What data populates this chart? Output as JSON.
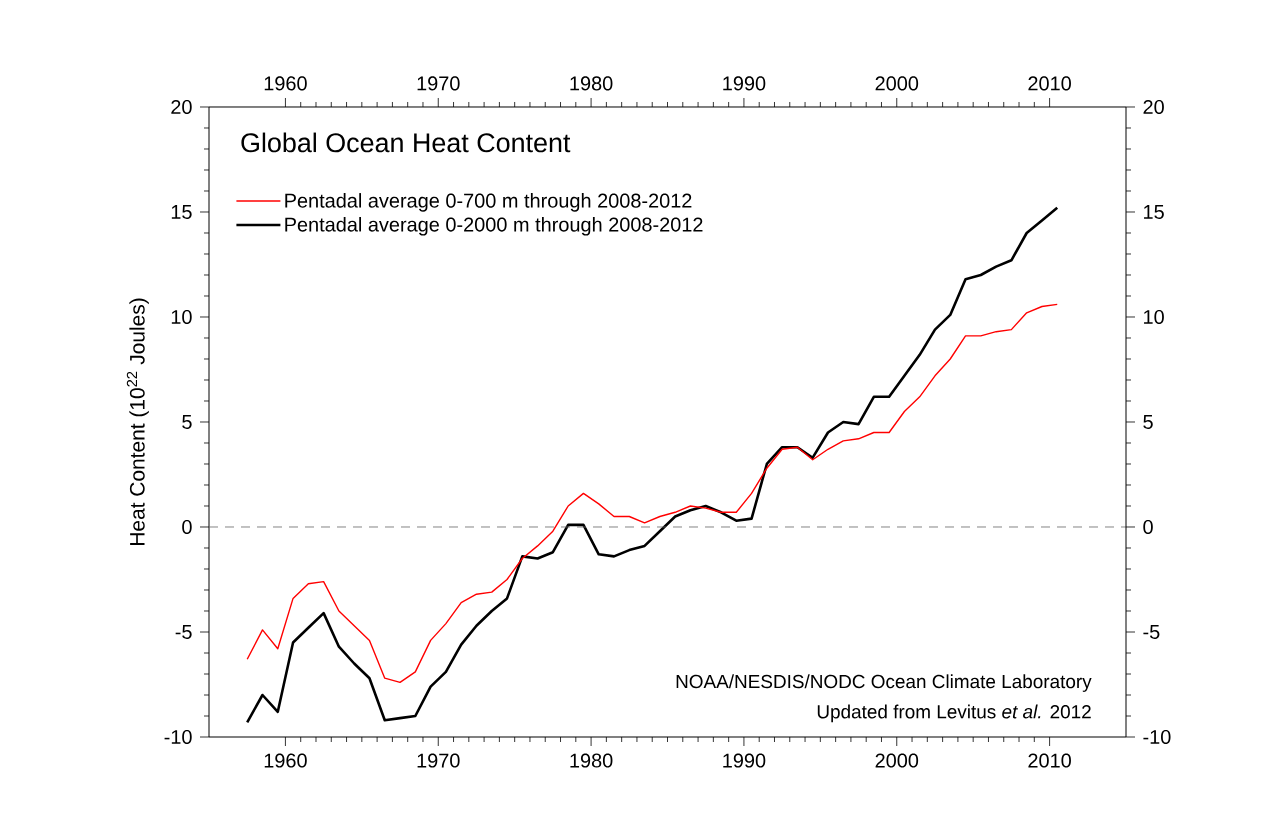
{
  "chart_data": {
    "type": "line",
    "title": "Global Ocean Heat Content",
    "ylabel": "Heat Content (10$^{22}$ Joules)",
    "annotations": [
      "NOAA/NESDIS/NODC Ocean Climate Laboratory",
      "Updated from Levitus *et al.* 2012"
    ],
    "x": [
      1957.5,
      1958.5,
      1959.5,
      1960.5,
      1961.5,
      1962.5,
      1963.5,
      1964.5,
      1965.5,
      1966.5,
      1967.5,
      1968.5,
      1969.5,
      1970.5,
      1971.5,
      1972.5,
      1973.5,
      1974.5,
      1975.5,
      1976.5,
      1977.5,
      1978.5,
      1979.5,
      1980.5,
      1981.5,
      1982.5,
      1983.5,
      1984.5,
      1985.5,
      1986.5,
      1987.5,
      1988.5,
      1989.5,
      1990.5,
      1991.5,
      1992.5,
      1993.5,
      1994.5,
      1995.5,
      1996.5,
      1997.5,
      1998.5,
      1999.5,
      2000.5,
      2001.5,
      2002.5,
      2003.5,
      2004.5,
      2005.5,
      2006.5,
      2007.5,
      2008.5,
      2009.5,
      2010.5
    ],
    "series": [
      {
        "name": "Pentadal average 0-700 m through 2008-2012",
        "color": "#ff0000",
        "values": [
          -6.3,
          -4.9,
          -5.8,
          -3.4,
          -2.7,
          -2.6,
          -4.0,
          -4.7,
          -5.4,
          -7.2,
          -7.4,
          -6.9,
          -5.4,
          -4.6,
          -3.6,
          -3.2,
          -3.1,
          -2.5,
          -1.5,
          -0.9,
          -0.2,
          1.0,
          1.6,
          1.1,
          0.5,
          0.5,
          0.2,
          0.5,
          0.7,
          1.0,
          0.9,
          0.7,
          0.7,
          1.6,
          2.8,
          3.7,
          3.8,
          3.2,
          3.7,
          4.1,
          4.2,
          4.5,
          4.5,
          5.5,
          6.2,
          7.2,
          8.0,
          9.1,
          9.1,
          9.3,
          9.4,
          10.2,
          10.5,
          10.6
        ]
      },
      {
        "name": "Pentadal average 0-2000 m through 2008-2012",
        "color": "#000000",
        "values": [
          -9.3,
          -8.0,
          -8.8,
          -5.5,
          -4.8,
          -4.1,
          -5.7,
          -6.5,
          -7.2,
          -9.2,
          -9.1,
          -9.0,
          -7.6,
          -6.9,
          -5.6,
          -4.7,
          -4.0,
          -3.4,
          -1.4,
          -1.5,
          -1.2,
          0.1,
          0.1,
          -1.3,
          -1.4,
          -1.1,
          -0.9,
          -0.2,
          0.5,
          0.8,
          1.0,
          0.7,
          0.3,
          0.4,
          3.0,
          3.8,
          3.8,
          3.3,
          4.5,
          5.0,
          4.9,
          6.2,
          6.2,
          7.2,
          8.2,
          9.4,
          10.1,
          11.8,
          12.0,
          12.4,
          12.7,
          14.0,
          14.6,
          15.2
        ]
      }
    ],
    "xlim": [
      1955,
      2015
    ],
    "xticks": [
      1960,
      1970,
      1980,
      1990,
      2000,
      2010
    ],
    "x2lim": [
      1955,
      2015
    ],
    "x2ticks": [
      1960,
      1970,
      1980,
      1990,
      2000,
      2010
    ],
    "ylim": [
      -10,
      20
    ],
    "yticks": [
      -10,
      -5,
      0,
      5,
      10,
      15,
      20
    ],
    "y2lim": [
      -10,
      20
    ],
    "y2ticks": [
      -10,
      -5,
      0,
      5,
      10,
      15,
      20
    ],
    "ref_lines": [
      {
        "axis": "y",
        "value": 0,
        "color": "#666666",
        "line_style": "dashed"
      }
    ],
    "legend": "top left",
    "line_style": "solid"
  }
}
